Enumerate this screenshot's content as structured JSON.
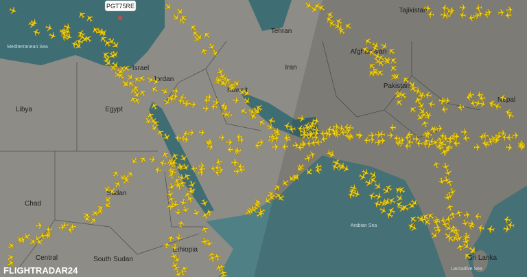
{
  "map": {
    "flight_label": "PGT75RE",
    "watermark": "FLIGHTRADAR24",
    "places": [
      {
        "name": "Mediterranean Sea"
      },
      {
        "name": "Libya"
      },
      {
        "name": "Egypt"
      },
      {
        "name": "Israel"
      },
      {
        "name": "Jordan"
      },
      {
        "name": "Sudan"
      },
      {
        "name": "Chad"
      },
      {
        "name": "South Sudan"
      },
      {
        "name": "Ethiopia"
      },
      {
        "name": "Central"
      },
      {
        "name": "Kuwait"
      },
      {
        "name": "Tehran"
      },
      {
        "name": "Iran"
      },
      {
        "name": "Afghanistan"
      },
      {
        "name": "Tajikistan"
      },
      {
        "name": "Pakistan"
      },
      {
        "name": "Nepal"
      },
      {
        "name": "Arabian Sea"
      },
      {
        "name": "Sri Lanka"
      },
      {
        "name": "Laccadive Sea"
      }
    ]
  }
}
